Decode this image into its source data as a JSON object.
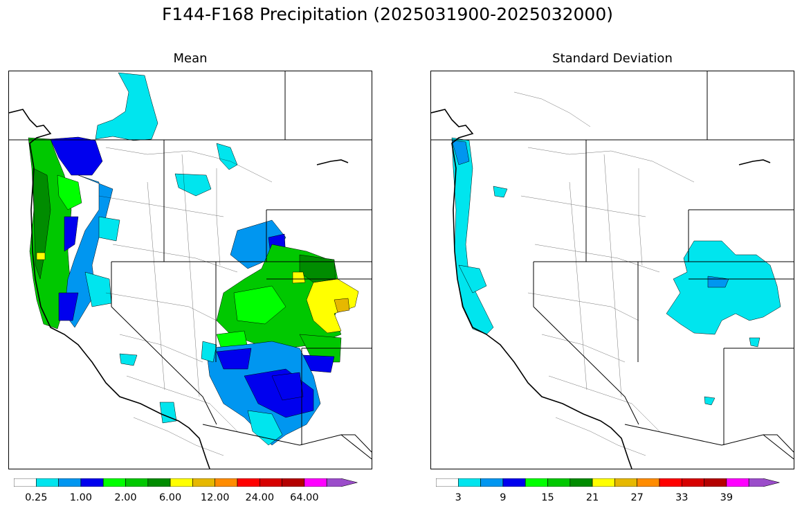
{
  "figure": {
    "title": "F144-F168 Precipitation (2025031900-2025032000)"
  },
  "panels": [
    {
      "title": "Mean",
      "colorbar": {
        "colors": [
          "#ffffff",
          "#00e5ee",
          "#0096f0",
          "#0000ee",
          "#00ff00",
          "#00c800",
          "#008c00",
          "#ffff00",
          "#e6b800",
          "#ff8c00",
          "#ff0000",
          "#d70000",
          "#b40000",
          "#ff00ff",
          "#9b4dca"
        ],
        "tick_labels": [
          "0.25",
          "1.00",
          "2.00",
          "6.00",
          "12.00",
          "24.00",
          "64.00"
        ],
        "extend": "max"
      }
    },
    {
      "title": "Standard Deviation",
      "colorbar": {
        "colors": [
          "#ffffff",
          "#00e5ee",
          "#0096f0",
          "#0000ee",
          "#00ff00",
          "#00c800",
          "#008c00",
          "#ffff00",
          "#e6b800",
          "#ff8c00",
          "#ff0000",
          "#d70000",
          "#b40000",
          "#ff00ff",
          "#9b4dca"
        ],
        "tick_labels": [
          "3",
          "9",
          "15",
          "21",
          "27",
          "33",
          "39"
        ],
        "extend": "max"
      }
    }
  ]
}
